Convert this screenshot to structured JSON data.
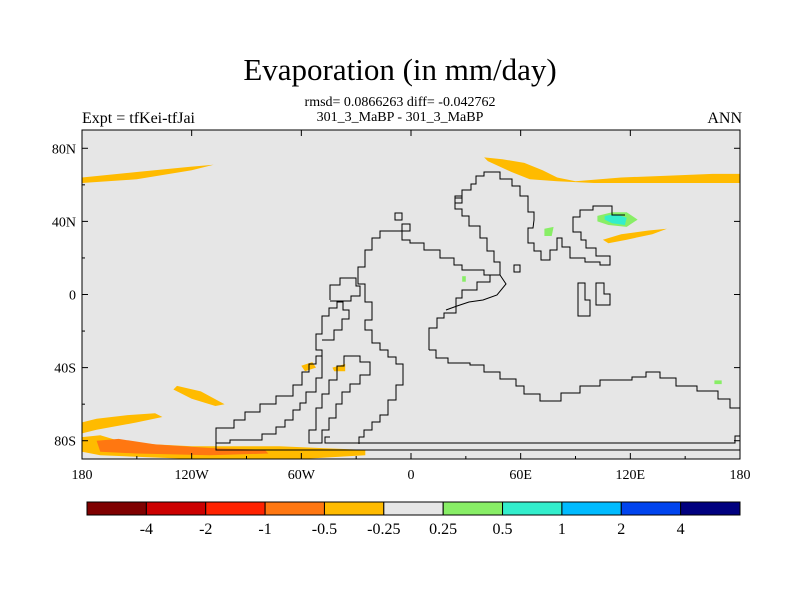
{
  "header": {
    "title": "Evaporation (in mm/day)",
    "stats_line": "rmsd= 0.0866263 diff= -0.042762",
    "case_line": "301_3_MaBP - 301_3_MaBP",
    "left_label": "Expt = tfKei-tfJai",
    "right_label": "ANN"
  },
  "chart_data": {
    "type": "heatmap",
    "title": "Evaporation (in mm/day)",
    "subtitle": "rmsd= 0.0866263 diff= -0.042762",
    "xlabel": "",
    "ylabel": "",
    "xlim": [
      -180,
      180
    ],
    "ylim": [
      -90,
      90
    ],
    "x_ticks": [
      {
        "value": -180,
        "label": "180"
      },
      {
        "value": -120,
        "label": "120W"
      },
      {
        "value": -60,
        "label": "60W"
      },
      {
        "value": 0,
        "label": "0"
      },
      {
        "value": 60,
        "label": "60E"
      },
      {
        "value": 120,
        "label": "120E"
      },
      {
        "value": 180,
        "label": "180"
      }
    ],
    "y_ticks": [
      {
        "value": 80,
        "label": "80N"
      },
      {
        "value": 40,
        "label": "40N"
      },
      {
        "value": 0,
        "label": "0"
      },
      {
        "value": -40,
        "label": "40S"
      },
      {
        "value": -80,
        "label": "80S"
      }
    ],
    "colorbar": {
      "colors": [
        "#7f0000",
        "#cc0000",
        "#ff2200",
        "#ff7711",
        "#ffbb00",
        "#e6e6e6",
        "#88ee66",
        "#33eecc",
        "#00bbff",
        "#0044ee",
        "#00007f"
      ],
      "labels": [
        "-4",
        "-2",
        "-1",
        "-0.5",
        "-0.25",
        "0.25",
        "0.5",
        "1",
        "2",
        "4"
      ]
    },
    "regions": [
      {
        "level": -0.25,
        "color": "#ffbb00",
        "points": [
          [
            -180,
            64
          ],
          [
            -150,
            67
          ],
          [
            -120,
            70
          ],
          [
            -108,
            71
          ],
          [
            -120,
            68
          ],
          [
            -150,
            63
          ],
          [
            -180,
            61
          ]
        ]
      },
      {
        "level": -0.25,
        "color": "#ffbb00",
        "points": [
          [
            180,
            66
          ],
          [
            165,
            66
          ],
          [
            140,
            65
          ],
          [
            115,
            64
          ],
          [
            90,
            62
          ],
          [
            80,
            64
          ],
          [
            72,
            68
          ],
          [
            62,
            72
          ],
          [
            50,
            74
          ],
          [
            40,
            75
          ],
          [
            42,
            73
          ],
          [
            55,
            67
          ],
          [
            65,
            63
          ],
          [
            80,
            62
          ],
          [
            100,
            61
          ],
          [
            130,
            61
          ],
          [
            160,
            61
          ],
          [
            180,
            61
          ]
        ]
      },
      {
        "level": -0.25,
        "color": "#ffbb00",
        "points": [
          [
            105,
            30
          ],
          [
            115,
            33
          ],
          [
            130,
            35
          ],
          [
            140,
            36
          ],
          [
            132,
            33
          ],
          [
            118,
            30
          ],
          [
            108,
            28
          ]
        ]
      },
      {
        "level": -0.25,
        "color": "#ffbb00",
        "points": [
          [
            -128,
            -50
          ],
          [
            -115,
            -53
          ],
          [
            -102,
            -60
          ],
          [
            -107,
            -61
          ],
          [
            -120,
            -57
          ],
          [
            -130,
            -52
          ]
        ]
      },
      {
        "level": -0.25,
        "color": "#ffbb00",
        "points": [
          [
            -172,
            -68
          ],
          [
            -155,
            -66
          ],
          [
            -140,
            -65
          ],
          [
            -136,
            -67
          ],
          [
            -150,
            -70
          ],
          [
            -172,
            -74
          ],
          [
            -180,
            -76
          ],
          [
            -180,
            -70
          ]
        ]
      },
      {
        "level": -0.25,
        "color": "#ffbb00",
        "points": [
          [
            -180,
            -78
          ],
          [
            -170,
            -77
          ],
          [
            -160,
            -80
          ],
          [
            -140,
            -82
          ],
          [
            -120,
            -83
          ],
          [
            -90,
            -83
          ],
          [
            -72,
            -83
          ],
          [
            -50,
            -84
          ],
          [
            -25,
            -85
          ],
          [
            -25,
            -88
          ],
          [
            -60,
            -90
          ],
          [
            -120,
            -90
          ],
          [
            -170,
            -88
          ],
          [
            -180,
            -86
          ]
        ]
      },
      {
        "level": -0.25,
        "color": "#ffbb00",
        "points": [
          [
            -60,
            -39
          ],
          [
            -54,
            -37
          ],
          [
            -52,
            -40
          ],
          [
            -58,
            -42
          ]
        ]
      },
      {
        "level": -0.25,
        "color": "#ffbb00",
        "points": [
          [
            -43,
            -40
          ],
          [
            -36,
            -38
          ],
          [
            -36,
            -42
          ],
          [
            -42,
            -42
          ]
        ]
      },
      {
        "level": -0.5,
        "color": "#ff7711",
        "points": [
          [
            -172,
            -80
          ],
          [
            -160,
            -79
          ],
          [
            -140,
            -82
          ],
          [
            -110,
            -84
          ],
          [
            -80,
            -85
          ],
          [
            -78,
            -87
          ],
          [
            -110,
            -88
          ],
          [
            -150,
            -87
          ],
          [
            -170,
            -86
          ]
        ]
      },
      {
        "level": 0.25,
        "color": "#88ee66",
        "points": [
          [
            102,
            43
          ],
          [
            110,
            45
          ],
          [
            118,
            45
          ],
          [
            124,
            41
          ],
          [
            118,
            37
          ],
          [
            108,
            38
          ],
          [
            102,
            40
          ]
        ]
      },
      {
        "level": 0.25,
        "color": "#88ee66",
        "points": [
          [
            73,
            36
          ],
          [
            78,
            37
          ],
          [
            77,
            32
          ],
          [
            73,
            32
          ]
        ]
      },
      {
        "level": 0.25,
        "color": "#88ee66",
        "points": [
          [
            28,
            10
          ],
          [
            30,
            10
          ],
          [
            30,
            7
          ],
          [
            28,
            7
          ]
        ]
      },
      {
        "level": 0.25,
        "color": "#88ee66",
        "points": [
          [
            166,
            -47
          ],
          [
            170,
            -47
          ],
          [
            170,
            -49
          ],
          [
            166,
            -49
          ]
        ]
      },
      {
        "level": 0.5,
        "color": "#33eecc",
        "points": [
          [
            106,
            43
          ],
          [
            112,
            44
          ],
          [
            118,
            42
          ],
          [
            117,
            38
          ],
          [
            110,
            39
          ],
          [
            106,
            41
          ]
        ]
      }
    ]
  }
}
